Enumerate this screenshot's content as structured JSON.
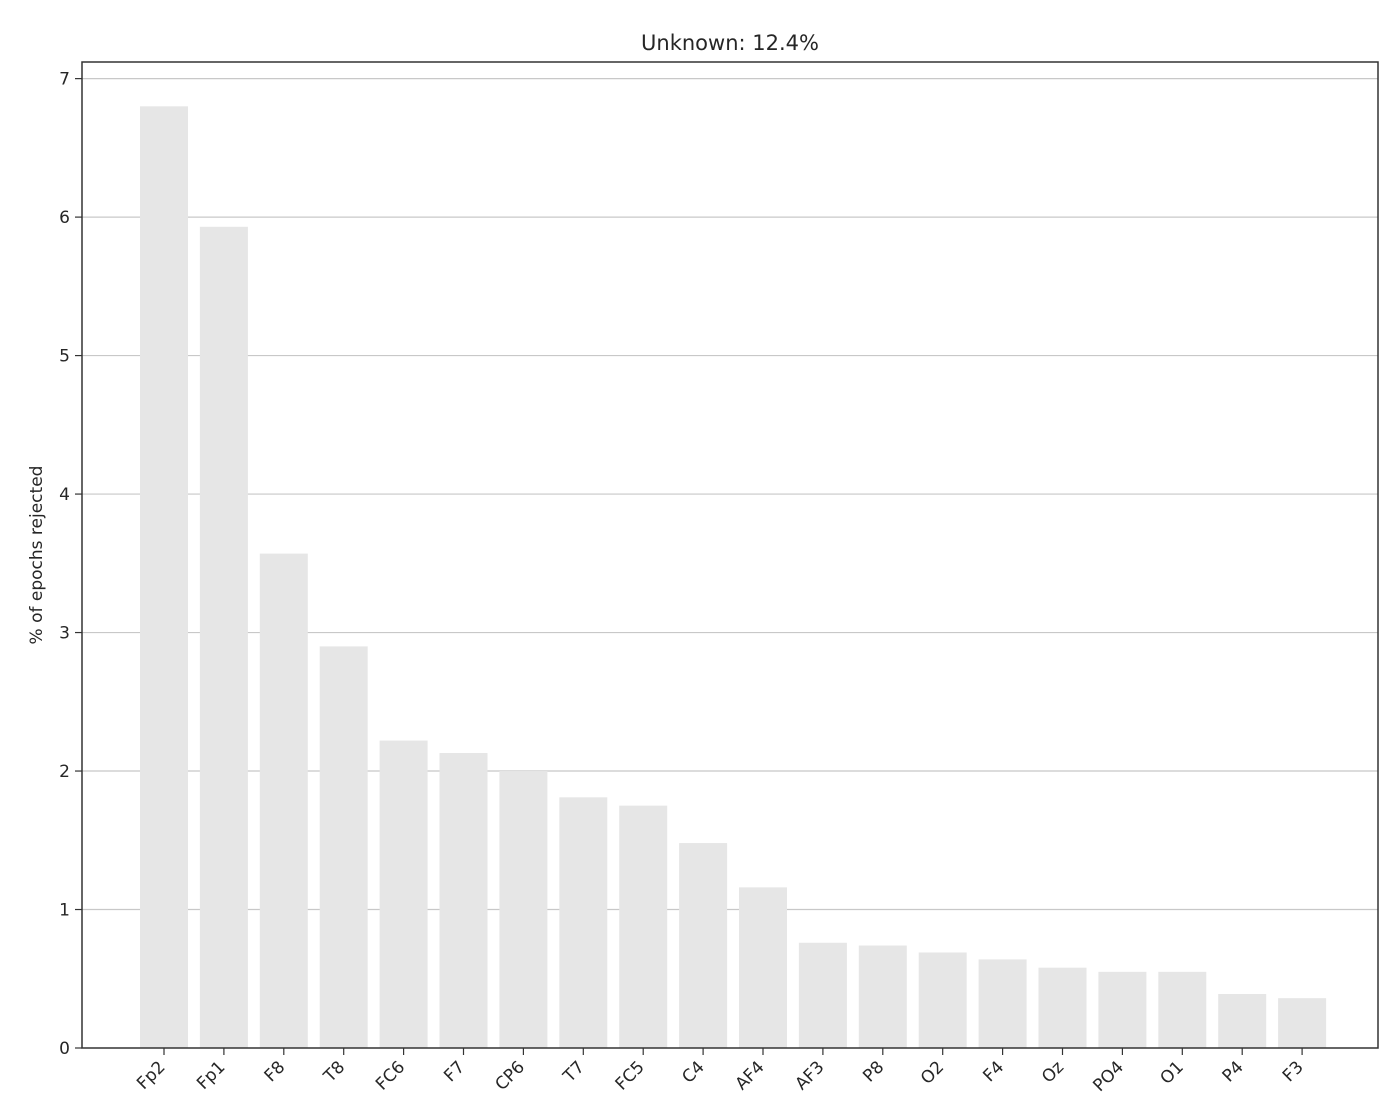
{
  "chart_data": {
    "type": "bar",
    "title": "Unknown: 12.4%",
    "xlabel": "",
    "ylabel": "% of epochs rejected",
    "categories": [
      "Fp2",
      "Fp1",
      "F8",
      "T8",
      "FC6",
      "F7",
      "CP6",
      "T7",
      "FC5",
      "C4",
      "AF4",
      "AF3",
      "P8",
      "O2",
      "F4",
      "Oz",
      "PO4",
      "O1",
      "P4",
      "F3"
    ],
    "values": [
      6.8,
      5.93,
      3.57,
      2.9,
      2.22,
      2.13,
      2.0,
      1.81,
      1.75,
      1.48,
      1.16,
      0.76,
      0.74,
      0.69,
      0.64,
      0.58,
      0.55,
      0.55,
      0.39,
      0.36
    ],
    "yticks": [
      0,
      1,
      2,
      3,
      4,
      5,
      6,
      7
    ],
    "ylim": [
      0,
      7.12
    ],
    "grid": "horizontal",
    "bar_color": "#e6e6e6",
    "grid_color": "#c8c8c8",
    "axis_color": "#333333"
  }
}
